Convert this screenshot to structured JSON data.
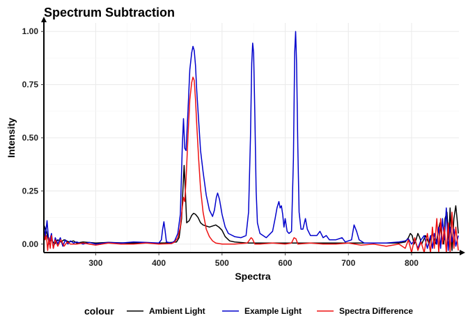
{
  "chart_data": {
    "type": "line",
    "title": "Spectrum Subtraction",
    "xlabel": "Spectra",
    "ylabel": "Intensity",
    "xlim": [
      218,
      875
    ],
    "ylim": [
      -0.04,
      1.04
    ],
    "x_ticks": [
      300,
      400,
      500,
      600,
      700,
      800
    ],
    "y_ticks": [
      0.0,
      0.25,
      0.5,
      0.75,
      1.0
    ],
    "x_tick_labels": [
      "300",
      "400",
      "500",
      "600",
      "700",
      "800"
    ],
    "y_tick_labels": [
      "0.00",
      "0.25",
      "0.50",
      "0.75",
      "1.00"
    ],
    "grid": true,
    "legend": {
      "title": "colour",
      "position": "bottom",
      "entries": [
        "Ambient Light",
        "Example Light",
        "Spectra Difference"
      ]
    },
    "series": [
      {
        "name": "Ambient Light",
        "color": "#000000",
        "points": [
          [
            218,
            0.09
          ],
          [
            222,
            0.06
          ],
          [
            226,
            0.01
          ],
          [
            230,
            0.02
          ],
          [
            235,
            0.0
          ],
          [
            240,
            0.02
          ],
          [
            245,
            0.01
          ],
          [
            250,
            0.02
          ],
          [
            258,
            0.01
          ],
          [
            265,
            0.015
          ],
          [
            270,
            0.005
          ],
          [
            280,
            0.01
          ],
          [
            300,
            0.005
          ],
          [
            320,
            0.008
          ],
          [
            350,
            0.005
          ],
          [
            380,
            0.005
          ],
          [
            400,
            0.005
          ],
          [
            410,
            0.006
          ],
          [
            420,
            0.008
          ],
          [
            428,
            0.01
          ],
          [
            432,
            0.03
          ],
          [
            436,
            0.12
          ],
          [
            438,
            0.25
          ],
          [
            440,
            0.37
          ],
          [
            442,
            0.25
          ],
          [
            444,
            0.1
          ],
          [
            448,
            0.11
          ],
          [
            452,
            0.135
          ],
          [
            455,
            0.145
          ],
          [
            458,
            0.14
          ],
          [
            462,
            0.125
          ],
          [
            466,
            0.1
          ],
          [
            470,
            0.09
          ],
          [
            475,
            0.085
          ],
          [
            480,
            0.08
          ],
          [
            485,
            0.085
          ],
          [
            490,
            0.09
          ],
          [
            495,
            0.08
          ],
          [
            500,
            0.065
          ],
          [
            505,
            0.035
          ],
          [
            512,
            0.015
          ],
          [
            520,
            0.01
          ],
          [
            540,
            0.005
          ],
          [
            560,
            0.005
          ],
          [
            600,
            0.005
          ],
          [
            700,
            0.005
          ],
          [
            750,
            0.005
          ],
          [
            780,
            0.005
          ],
          [
            790,
            0.01
          ],
          [
            795,
            0.03
          ],
          [
            798,
            0.05
          ],
          [
            801,
            0.04
          ],
          [
            804,
            0.0
          ],
          [
            807,
            0.02
          ],
          [
            810,
            0.05
          ],
          [
            813,
            0.03
          ],
          [
            816,
            0.0
          ],
          [
            819,
            0.02
          ],
          [
            822,
            0.04
          ],
          [
            825,
            0.02
          ],
          [
            828,
            0.0
          ],
          [
            830,
            0.03
          ],
          [
            833,
            0.05
          ],
          [
            836,
            0.02
          ],
          [
            839,
            0.0
          ],
          [
            842,
            0.06
          ],
          [
            845,
            0.1
          ],
          [
            848,
            0.03
          ],
          [
            851,
            0.0
          ],
          [
            853,
            0.12
          ],
          [
            856,
            0.15
          ],
          [
            859,
            0.02
          ],
          [
            861,
            0.17
          ],
          [
            864,
            -0.03
          ],
          [
            867,
            0.12
          ],
          [
            870,
            0.18
          ],
          [
            872,
            0.12
          ],
          [
            874,
            0.05
          ]
        ]
      },
      {
        "name": "Example Light",
        "color": "#0000cc",
        "points": [
          [
            218,
            0.1
          ],
          [
            220,
            0.03
          ],
          [
            223,
            0.11
          ],
          [
            226,
            0.0
          ],
          [
            230,
            0.05
          ],
          [
            233,
            -0.02
          ],
          [
            236,
            0.03
          ],
          [
            240,
            0.0
          ],
          [
            244,
            0.03
          ],
          [
            248,
            -0.01
          ],
          [
            252,
            0.02
          ],
          [
            256,
            0.0
          ],
          [
            260,
            0.015
          ],
          [
            265,
            0.005
          ],
          [
            270,
            0.01
          ],
          [
            280,
            0.0
          ],
          [
            290,
            0.008
          ],
          [
            300,
            0.0
          ],
          [
            320,
            0.008
          ],
          [
            340,
            0.005
          ],
          [
            360,
            0.01
          ],
          [
            380,
            0.008
          ],
          [
            400,
            0.005
          ],
          [
            404,
            0.02
          ],
          [
            406,
            0.07
          ],
          [
            408,
            0.105
          ],
          [
            410,
            0.06
          ],
          [
            412,
            0.01
          ],
          [
            420,
            0.005
          ],
          [
            425,
            0.015
          ],
          [
            430,
            0.05
          ],
          [
            434,
            0.14
          ],
          [
            437,
            0.45
          ],
          [
            439,
            0.59
          ],
          [
            441,
            0.45
          ],
          [
            443,
            0.44
          ],
          [
            446,
            0.62
          ],
          [
            449,
            0.82
          ],
          [
            452,
            0.9
          ],
          [
            454,
            0.93
          ],
          [
            456,
            0.91
          ],
          [
            458,
            0.84
          ],
          [
            460,
            0.72
          ],
          [
            463,
            0.58
          ],
          [
            466,
            0.44
          ],
          [
            470,
            0.34
          ],
          [
            475,
            0.23
          ],
          [
            480,
            0.16
          ],
          [
            485,
            0.13
          ],
          [
            488,
            0.16
          ],
          [
            491,
            0.22
          ],
          [
            493,
            0.24
          ],
          [
            496,
            0.21
          ],
          [
            500,
            0.14
          ],
          [
            505,
            0.08
          ],
          [
            510,
            0.05
          ],
          [
            520,
            0.035
          ],
          [
            530,
            0.03
          ],
          [
            538,
            0.04
          ],
          [
            542,
            0.15
          ],
          [
            545,
            0.5
          ],
          [
            547,
            0.85
          ],
          [
            548.5,
            0.945
          ],
          [
            550,
            0.9
          ],
          [
            552,
            0.6
          ],
          [
            554,
            0.25
          ],
          [
            556,
            0.1
          ],
          [
            560,
            0.05
          ],
          [
            570,
            0.03
          ],
          [
            580,
            0.06
          ],
          [
            584,
            0.12
          ],
          [
            587,
            0.17
          ],
          [
            590,
            0.2
          ],
          [
            592,
            0.17
          ],
          [
            594,
            0.18
          ],
          [
            596,
            0.14
          ],
          [
            598,
            0.08
          ],
          [
            600,
            0.12
          ],
          [
            603,
            0.06
          ],
          [
            606,
            0.05
          ],
          [
            610,
            0.06
          ],
          [
            613,
            0.4
          ],
          [
            615,
            0.9
          ],
          [
            616.5,
            1.0
          ],
          [
            618,
            0.85
          ],
          [
            620,
            0.45
          ],
          [
            622,
            0.15
          ],
          [
            625,
            0.07
          ],
          [
            628,
            0.07
          ],
          [
            632,
            0.12
          ],
          [
            635,
            0.07
          ],
          [
            640,
            0.04
          ],
          [
            650,
            0.04
          ],
          [
            655,
            0.06
          ],
          [
            660,
            0.03
          ],
          [
            665,
            0.04
          ],
          [
            670,
            0.02
          ],
          [
            680,
            0.02
          ],
          [
            690,
            0.03
          ],
          [
            695,
            0.01
          ],
          [
            700,
            0.015
          ],
          [
            705,
            0.02
          ],
          [
            709,
            0.09
          ],
          [
            713,
            0.06
          ],
          [
            717,
            0.02
          ],
          [
            725,
            0.005
          ],
          [
            740,
            0.005
          ],
          [
            760,
            0.005
          ],
          [
            780,
            0.01
          ],
          [
            790,
            0.015
          ],
          [
            795,
            0.025
          ],
          [
            800,
            0.0
          ],
          [
            805,
            0.02
          ],
          [
            810,
            -0.02
          ],
          [
            815,
            0.02
          ],
          [
            820,
            0.04
          ],
          [
            825,
            -0.02
          ],
          [
            830,
            0.04
          ],
          [
            833,
            -0.02
          ],
          [
            836,
            0.05
          ],
          [
            840,
            0.0
          ],
          [
            843,
            0.08
          ],
          [
            846,
            -0.02
          ],
          [
            849,
            0.12
          ],
          [
            852,
            0.02
          ],
          [
            855,
            0.17
          ],
          [
            858,
            -0.03
          ],
          [
            861,
            0.08
          ],
          [
            864,
            0.01
          ],
          [
            867,
            0.07
          ],
          [
            870,
            -0.01
          ],
          [
            874,
            0.04
          ]
        ]
      },
      {
        "name": "Spectra Difference",
        "color": "#ee1111",
        "points": [
          [
            218,
            0.06
          ],
          [
            220,
            0.02
          ],
          [
            222,
            0.04
          ],
          [
            224,
            -0.03
          ],
          [
            226,
            0.03
          ],
          [
            228,
            -0.02
          ],
          [
            230,
            0.04
          ],
          [
            233,
            -0.02
          ],
          [
            236,
            0.02
          ],
          [
            240,
            -0.01
          ],
          [
            245,
            0.02
          ],
          [
            250,
            -0.01
          ],
          [
            255,
            0.01
          ],
          [
            260,
            0.0
          ],
          [
            270,
            0.0
          ],
          [
            280,
            0.005
          ],
          [
            300,
            -0.005
          ],
          [
            320,
            0.005
          ],
          [
            340,
            0.0
          ],
          [
            360,
            0.0
          ],
          [
            380,
            0.005
          ],
          [
            400,
            0.0
          ],
          [
            420,
            0.002
          ],
          [
            425,
            0.01
          ],
          [
            430,
            0.03
          ],
          [
            434,
            0.08
          ],
          [
            437,
            0.17
          ],
          [
            439,
            0.22
          ],
          [
            441,
            0.2
          ],
          [
            443,
            0.3
          ],
          [
            446,
            0.5
          ],
          [
            449,
            0.68
          ],
          [
            452,
            0.76
          ],
          [
            454,
            0.785
          ],
          [
            456,
            0.77
          ],
          [
            458,
            0.68
          ],
          [
            460,
            0.56
          ],
          [
            463,
            0.4
          ],
          [
            466,
            0.26
          ],
          [
            470,
            0.15
          ],
          [
            475,
            0.07
          ],
          [
            480,
            0.035
          ],
          [
            485,
            0.015
          ],
          [
            490,
            0.005
          ],
          [
            500,
            0.0
          ],
          [
            510,
            0.0
          ],
          [
            520,
            0.0
          ],
          [
            540,
            0.005
          ],
          [
            546,
            0.03
          ],
          [
            548,
            0.025
          ],
          [
            552,
            0.0
          ],
          [
            560,
            0.0
          ],
          [
            580,
            0.005
          ],
          [
            600,
            0.0
          ],
          [
            610,
            0.005
          ],
          [
            614,
            0.03
          ],
          [
            617,
            0.025
          ],
          [
            620,
            0.0
          ],
          [
            640,
            0.005
          ],
          [
            660,
            0.0
          ],
          [
            680,
            0.0
          ],
          [
            700,
            0.005
          ],
          [
            720,
            -0.005
          ],
          [
            740,
            0.0
          ],
          [
            760,
            -0.01
          ],
          [
            780,
            0.0
          ],
          [
            790,
            -0.02
          ],
          [
            795,
            0.02
          ],
          [
            800,
            -0.04
          ],
          [
            805,
            0.03
          ],
          [
            810,
            -0.03
          ],
          [
            815,
            0.01
          ],
          [
            820,
            -0.04
          ],
          [
            825,
            0.05
          ],
          [
            830,
            -0.04
          ],
          [
            833,
            0.08
          ],
          [
            836,
            -0.02
          ],
          [
            840,
            0.12
          ],
          [
            843,
            -0.04
          ],
          [
            846,
            0.12
          ],
          [
            849,
            0.0
          ],
          [
            852,
            0.08
          ],
          [
            855,
            -0.04
          ],
          [
            858,
            0.1
          ],
          [
            861,
            -0.04
          ],
          [
            864,
            0.15
          ],
          [
            867,
            -0.02
          ],
          [
            870,
            0.08
          ],
          [
            874,
            -0.03
          ]
        ]
      }
    ]
  }
}
